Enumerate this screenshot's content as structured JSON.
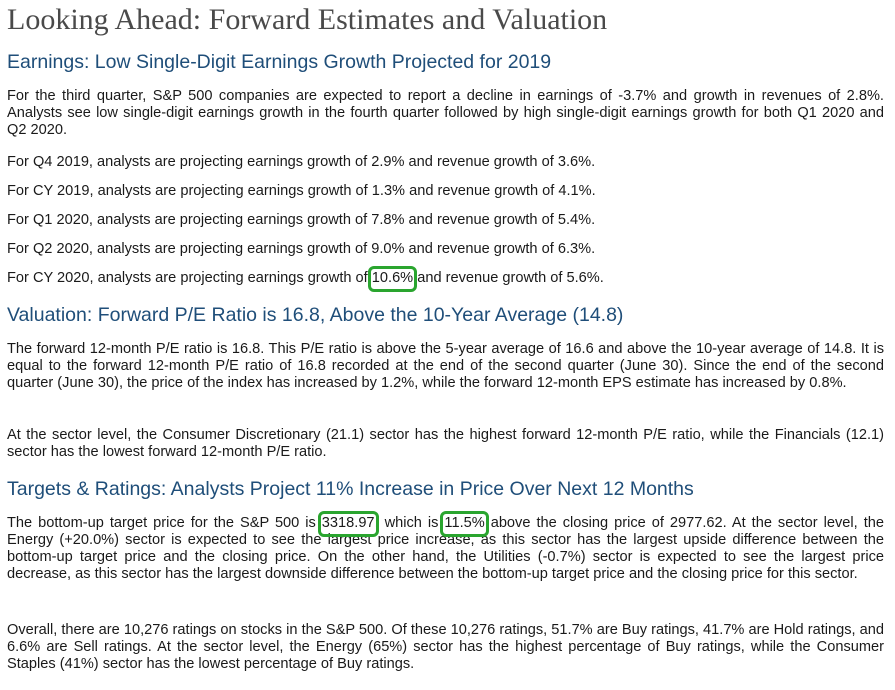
{
  "title": "Looking Ahead: Forward Estimates and Valuation",
  "earnings": {
    "heading": "Earnings: Low Single-Digit Earnings Growth Projected for 2019",
    "para1": "For the third quarter, S&P 500 companies are expected to report a decline in earnings of -3.7% and growth in revenues of 2.8%. Analysts see low single-digit earnings growth in the fourth quarter followed by high single-digit earnings growth for both Q1 2020 and Q2 2020.",
    "q4_2019": "For Q4 2019, analysts are projecting earnings growth of 2.9% and revenue growth of 3.6%.",
    "cy_2019": "For CY 2019, analysts are projecting earnings growth of 1.3% and revenue growth of 4.1%.",
    "q1_2020": "For Q1 2020, analysts are projecting earnings growth of 7.8% and revenue growth of 5.4%.",
    "q2_2020": "For Q2 2020, analysts are projecting earnings growth of 9.0% and revenue growth of 6.3%.",
    "cy_2020_pre": "For CY 2020, analysts are projecting earnings growth of ",
    "cy_2020_value": "10.6%",
    "cy_2020_post": " and revenue growth of 5.6%."
  },
  "valuation": {
    "heading": "Valuation: Forward P/E Ratio is 16.8, Above the 10-Year Average (14.8)",
    "para1": "The forward 12-month P/E ratio is 16.8. This P/E ratio is above the 5-year average of 16.6 and above the 10-year average of 14.8. It is equal to the forward 12-month P/E ratio of 16.8 recorded at the end of the second quarter (June 30). Since the end of the second quarter (June 30), the price of the index has increased by 1.2%, while the forward 12-month EPS estimate has increased by 0.8%.",
    "para2": "At the sector level, the Consumer Discretionary (21.1) sector has the highest forward 12-month P/E ratio, while the Financials (12.1) sector has the lowest forward 12-month P/E ratio."
  },
  "targets": {
    "heading": "Targets & Ratings: Analysts Project 11% Increase in Price Over Next 12 Months",
    "p1_part1": "The bottom-up target price for the S&P 500 is ",
    "target_price": "3318.97",
    "p1_part2": ", which is ",
    "pct_above": "11.5%",
    "p1_part3": " above the closing price of 2977.62. At the sector level, the Energy (+20.0%) sector is expected to see the largest price increase, as this sector has the largest upside difference between the bottom-up target price and the closing price. On the other hand, the Utilities (-0.7%) sector is expected to see the largest price decrease, as this sector has the largest downside difference between the bottom-up target price and the closing price for this sector.",
    "para2": "Overall, there are 10,276 ratings on stocks in the S&P 500. Of these 10,276 ratings, 51.7% are Buy ratings, 41.7% are Hold ratings, and 6.6% are Sell ratings. At the sector level, the Energy (65%) sector has the highest percentage of Buy ratings, while the Consumer Staples (41%) sector has the lowest percentage of Buy ratings."
  },
  "colors": {
    "heading_blue": "#1f4e79",
    "highlight_green": "#2aa52f",
    "title_gray": "#4a4a4a"
  }
}
